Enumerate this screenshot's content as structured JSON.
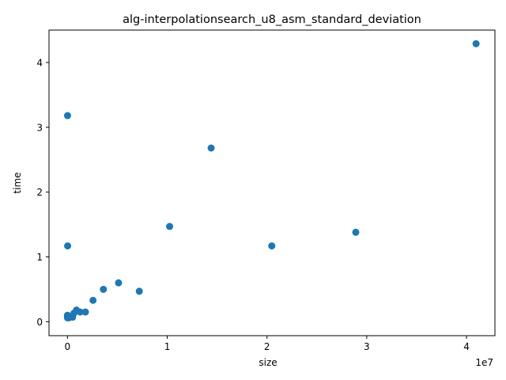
{
  "chart_data": {
    "type": "scatter",
    "title": "alg-interpolationsearch_u8_asm_standard_deviation",
    "xlabel": "size",
    "ylabel": "time",
    "x_offset_label": "1e7",
    "xlim": [
      -1850000,
      42850000
    ],
    "ylim": [
      -0.215,
      4.5
    ],
    "xticks": [
      0,
      10000000,
      20000000,
      30000000,
      40000000
    ],
    "xtick_labels": [
      "0",
      "1",
      "2",
      "3",
      "4"
    ],
    "yticks": [
      0,
      1,
      2,
      3,
      4
    ],
    "ytick_labels": [
      "0",
      "1",
      "2",
      "3",
      "4"
    ],
    "grid": false,
    "marker_color": "#1f77b4",
    "series": [
      {
        "points": [
          [
            1000,
            0.1
          ],
          [
            2000,
            0.08
          ],
          [
            4000,
            0.06
          ],
          [
            8000,
            3.18
          ],
          [
            16000,
            1.17
          ],
          [
            32000,
            0.07
          ],
          [
            64000,
            0.09
          ],
          [
            128000,
            0.06
          ],
          [
            256000,
            0.08
          ],
          [
            512000,
            0.07
          ],
          [
            640000,
            0.13
          ],
          [
            900000,
            0.18
          ],
          [
            1280000,
            0.15
          ],
          [
            1800000,
            0.15
          ],
          [
            2560000,
            0.33
          ],
          [
            3600000,
            0.5
          ],
          [
            5120000,
            0.6
          ],
          [
            7200000,
            0.47
          ],
          [
            10240000,
            1.47
          ],
          [
            14400000,
            2.68
          ],
          [
            20480000,
            1.17
          ],
          [
            28900000,
            1.38
          ],
          [
            40960000,
            4.29
          ]
        ]
      }
    ]
  }
}
